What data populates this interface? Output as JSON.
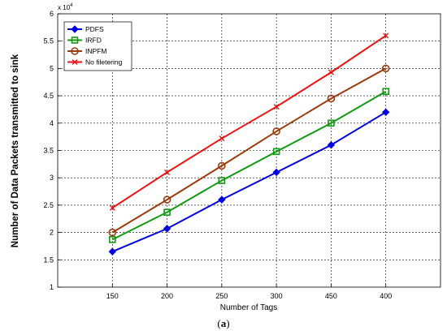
{
  "chart_data": {
    "type": "line",
    "categories": [
      "150",
      "200",
      "250",
      "300",
      "450",
      "400"
    ],
    "xlabel": "Number of Tags",
    "ylabel": "Number of Data Packets transmitted to sink",
    "y_exponent_label": "x 10^4",
    "y_scale_base": "x 10",
    "y_scale_exp": "4",
    "ylim": [
      1,
      6
    ],
    "yticks": [
      "1",
      "1.5",
      "2",
      "2.5",
      "3",
      "3.5",
      "4",
      "4.5",
      "5",
      "5.5",
      "6"
    ],
    "grid": true,
    "legend_position": "top-left",
    "series": [
      {
        "name": "PDFS",
        "color": "#0000e0",
        "marker": "diamond",
        "values": [
          1.65,
          2.07,
          2.6,
          3.1,
          3.6,
          4.2
        ]
      },
      {
        "name": "IRFD",
        "color": "#119911",
        "marker": "square",
        "values": [
          1.87,
          2.37,
          2.95,
          3.48,
          4.0,
          4.58
        ]
      },
      {
        "name": "INPFM",
        "color": "#9b3a0e",
        "marker": "circle",
        "values": [
          2.0,
          2.6,
          3.22,
          3.85,
          4.45,
          5.0
        ]
      },
      {
        "name": "No filetering",
        "color": "#ee1111",
        "marker": "x",
        "values": [
          2.45,
          3.1,
          3.72,
          4.3,
          4.93,
          5.6
        ]
      }
    ]
  },
  "caption": {
    "open": "(",
    "letter": "a",
    "close": ")"
  }
}
